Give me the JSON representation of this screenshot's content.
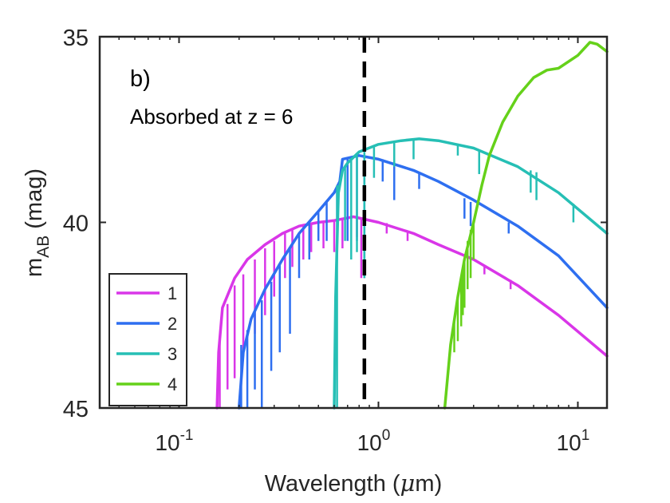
{
  "chart_data": {
    "type": "line",
    "title": "",
    "annotations": [
      "b)",
      "Absorbed at z = 6"
    ],
    "xlabel": {
      "pre": "Wavelength (",
      "mu": "μ",
      "post": "m)"
    },
    "ylabel": {
      "base": "m",
      "sub": "AB",
      "post": " (mag)"
    },
    "xscale": "log",
    "xlim": [
      0.04,
      14
    ],
    "ylim": [
      45,
      35
    ],
    "y_reversed": true,
    "x_ticks": [
      {
        "value": 0.1,
        "base": "10",
        "exp": "-1"
      },
      {
        "value": 1,
        "base": "10",
        "exp": "0"
      },
      {
        "value": 10,
        "base": "10",
        "exp": "1"
      }
    ],
    "y_ticks": [
      {
        "value": 35,
        "label": "35"
      },
      {
        "value": 40,
        "label": "40"
      },
      {
        "value": 45,
        "label": "45"
      }
    ],
    "vertical_line": {
      "x": 0.85,
      "style": "dashed",
      "color": "#000000"
    },
    "legend": {
      "position": "bottom-left"
    },
    "grid": false,
    "series": [
      {
        "name": "1",
        "color": "#d936e8",
        "points": [
          [
            0.155,
            45
          ],
          [
            0.158,
            43.5
          ],
          [
            0.165,
            42.3
          ],
          [
            0.19,
            41.5
          ],
          [
            0.22,
            41.0
          ],
          [
            0.27,
            40.6
          ],
          [
            0.33,
            40.3
          ],
          [
            0.4,
            40.1
          ],
          [
            0.5,
            40.0
          ],
          [
            0.6,
            39.95
          ],
          [
            0.75,
            39.85
          ],
          [
            1.0,
            40.0
          ],
          [
            1.5,
            40.3
          ],
          [
            2.0,
            40.6
          ],
          [
            3.0,
            41.0
          ],
          [
            5.0,
            41.7
          ],
          [
            8.0,
            42.5
          ],
          [
            14,
            43.6
          ]
        ],
        "lines": [
          [
            0.16,
            45,
            43.2
          ],
          [
            0.175,
            44.5,
            42.2
          ],
          [
            0.19,
            44.2,
            41.7
          ],
          [
            0.21,
            43.6,
            41.4
          ],
          [
            0.24,
            43.0,
            41.0
          ],
          [
            0.27,
            42.5,
            40.7
          ],
          [
            0.3,
            42.0,
            40.5
          ],
          [
            0.34,
            41.5,
            40.3
          ],
          [
            0.37,
            41.2,
            40.2
          ],
          [
            0.42,
            41.0,
            40.1
          ],
          [
            0.46,
            40.8,
            40.05
          ],
          [
            0.53,
            40.7,
            40.0
          ],
          [
            0.6,
            40.8,
            39.97
          ],
          [
            0.66,
            40.7,
            39.9
          ],
          [
            0.78,
            40.4,
            39.85
          ],
          [
            0.82,
            41.5,
            39.86
          ],
          [
            1.1,
            40.3,
            40.02
          ],
          [
            1.4,
            40.5,
            40.25
          ],
          [
            2.8,
            41.3,
            40.95
          ],
          [
            3.4,
            41.4,
            41.15
          ],
          [
            4.6,
            41.8,
            41.55
          ]
        ]
      },
      {
        "name": "2",
        "color": "#2e6ff0",
        "points": [
          [
            0.2,
            45
          ],
          [
            0.21,
            43.5
          ],
          [
            0.23,
            42.6
          ],
          [
            0.27,
            41.8
          ],
          [
            0.33,
            41.0
          ],
          [
            0.4,
            40.3
          ],
          [
            0.5,
            39.7
          ],
          [
            0.6,
            39.2
          ],
          [
            0.64,
            38.9
          ],
          [
            0.66,
            38.3
          ],
          [
            0.8,
            38.2
          ],
          [
            1.0,
            38.3
          ],
          [
            1.5,
            38.6
          ],
          [
            2.0,
            38.9
          ],
          [
            3.0,
            39.4
          ],
          [
            5.0,
            40.1
          ],
          [
            8.0,
            40.9
          ],
          [
            14,
            42.3
          ]
        ],
        "lines": [
          [
            0.205,
            45,
            43.3
          ],
          [
            0.22,
            45,
            42.9
          ],
          [
            0.24,
            44.5,
            42.4
          ],
          [
            0.26,
            45,
            42.1
          ],
          [
            0.29,
            44.0,
            41.6
          ],
          [
            0.32,
            43.5,
            41.1
          ],
          [
            0.36,
            43.0,
            40.7
          ],
          [
            0.4,
            41.5,
            40.3
          ],
          [
            0.45,
            41.0,
            40.0
          ],
          [
            0.5,
            40.5,
            39.7
          ],
          [
            0.55,
            40.5,
            39.45
          ],
          [
            0.62,
            40.2,
            39.1
          ],
          [
            0.7,
            40.5,
            38.3
          ],
          [
            0.78,
            40.5,
            38.22
          ],
          [
            0.85,
            41.5,
            38.22
          ],
          [
            1.05,
            38.9,
            38.3
          ],
          [
            1.2,
            39.4,
            38.4
          ],
          [
            1.6,
            39.1,
            38.65
          ],
          [
            2.7,
            39.9,
            39.35
          ],
          [
            2.9,
            40.1,
            39.45
          ],
          [
            4.5,
            40.3,
            40.0
          ]
        ]
      },
      {
        "name": "3",
        "color": "#26bfb5",
        "points": [
          [
            0.6,
            45
          ],
          [
            0.61,
            42.0
          ],
          [
            0.63,
            39.2
          ],
          [
            0.66,
            38.6
          ],
          [
            0.7,
            38.4
          ],
          [
            0.8,
            38.1
          ],
          [
            1.0,
            37.9
          ],
          [
            1.3,
            37.8
          ],
          [
            1.6,
            37.75
          ],
          [
            2.0,
            37.8
          ],
          [
            3.0,
            38.0
          ],
          [
            5.0,
            38.5
          ],
          [
            8.0,
            39.2
          ],
          [
            14,
            40.3
          ]
        ],
        "lines": [
          [
            0.62,
            45,
            39.0
          ],
          [
            0.68,
            40.5,
            38.5
          ],
          [
            0.73,
            41.0,
            38.3
          ],
          [
            0.78,
            40.8,
            38.2
          ],
          [
            0.85,
            41.5,
            38.1
          ],
          [
            0.95,
            38.8,
            37.95
          ],
          [
            1.2,
            38.5,
            37.82
          ],
          [
            1.5,
            38.3,
            37.76
          ],
          [
            2.5,
            38.2,
            37.9
          ],
          [
            3.2,
            38.7,
            38.05
          ],
          [
            5.8,
            39.2,
            38.6
          ],
          [
            6.2,
            39.4,
            38.65
          ],
          [
            9.5,
            40.0,
            39.5
          ]
        ]
      },
      {
        "name": "4",
        "color": "#65d11a",
        "points": [
          [
            2.15,
            45
          ],
          [
            2.3,
            43.3
          ],
          [
            2.5,
            42.0
          ],
          [
            2.7,
            41.0
          ],
          [
            3.0,
            40.0
          ],
          [
            3.3,
            39.0
          ],
          [
            3.6,
            38.2
          ],
          [
            4.2,
            37.3
          ],
          [
            5.0,
            36.6
          ],
          [
            6.0,
            36.1
          ],
          [
            7.0,
            35.9
          ],
          [
            8.0,
            35.85
          ],
          [
            10.0,
            35.5
          ],
          [
            11.5,
            35.15
          ],
          [
            12.5,
            35.2
          ],
          [
            14,
            35.4
          ]
        ],
        "lines": [
          [
            2.4,
            43.5,
            42.6
          ],
          [
            2.5,
            43.2,
            42.0
          ],
          [
            2.6,
            42.8,
            41.5
          ],
          [
            2.65,
            42.5,
            41.2
          ],
          [
            2.7,
            42.3,
            41.0
          ],
          [
            2.8,
            41.8,
            40.5
          ],
          [
            2.9,
            41.5,
            40.2
          ],
          [
            3.0,
            41.0,
            40.0
          ]
        ]
      }
    ]
  }
}
